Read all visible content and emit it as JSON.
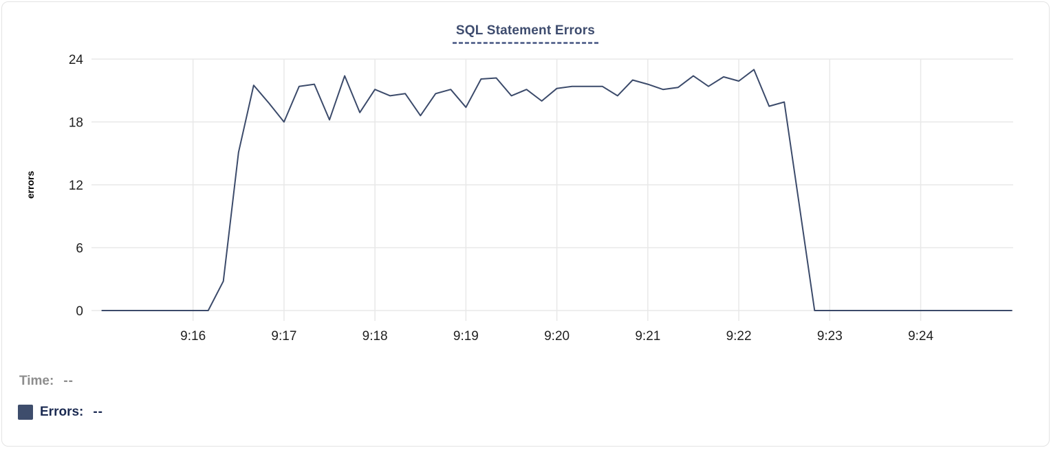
{
  "card": {
    "title": "SQL Statement Errors"
  },
  "chart_data": {
    "type": "line",
    "title": "SQL Statement Errors",
    "xlabel": "",
    "ylabel": "errors",
    "ylim": [
      0,
      24
    ],
    "yticks": [
      0,
      6,
      12,
      18,
      24
    ],
    "xlim": [
      "9:14:53",
      "9:25:01"
    ],
    "xticks": [
      "9:16",
      "9:17",
      "9:18",
      "9:19",
      "9:20",
      "9:21",
      "9:22",
      "9:23",
      "9:24"
    ],
    "grid": true,
    "legend_position": "bottom-left",
    "series": [
      {
        "name": "Errors",
        "x": [
          "9:15:00",
          "9:15:10",
          "9:15:20",
          "9:15:30",
          "9:15:40",
          "9:15:50",
          "9:16:00",
          "9:16:10",
          "9:16:20",
          "9:16:30",
          "9:16:40",
          "9:16:50",
          "9:17:00",
          "9:17:10",
          "9:17:20",
          "9:17:30",
          "9:17:40",
          "9:17:50",
          "9:18:00",
          "9:18:10",
          "9:18:20",
          "9:18:30",
          "9:18:40",
          "9:18:50",
          "9:19:00",
          "9:19:10",
          "9:19:20",
          "9:19:30",
          "9:19:40",
          "9:19:50",
          "9:20:00",
          "9:20:10",
          "9:20:20",
          "9:20:30",
          "9:20:40",
          "9:20:50",
          "9:21:00",
          "9:21:10",
          "9:21:20",
          "9:21:30",
          "9:21:40",
          "9:21:50",
          "9:22:00",
          "9:22:10",
          "9:22:20",
          "9:22:30",
          "9:22:40",
          "9:22:50",
          "9:23:00",
          "9:23:10",
          "9:23:20",
          "9:23:30",
          "9:23:40",
          "9:23:50",
          "9:24:00",
          "9:24:10",
          "9:24:20",
          "9:24:30",
          "9:24:40",
          "9:24:50",
          "9:25:00"
        ],
        "values": [
          0,
          0,
          0,
          0,
          0,
          0,
          0,
          0,
          2.8,
          15.1,
          21.5,
          19.8,
          18,
          21.4,
          21.6,
          18.2,
          22.4,
          18.9,
          21.1,
          20.5,
          20.7,
          18.6,
          20.7,
          21.1,
          19.4,
          22.1,
          22.2,
          20.5,
          21.1,
          20,
          21.2,
          21.4,
          21.4,
          21.4,
          20.5,
          22,
          21.6,
          21.1,
          21.3,
          22.4,
          21.4,
          22.3,
          21.9,
          23,
          19.5,
          19.9,
          10,
          0,
          0,
          0,
          0,
          0,
          0,
          0,
          0,
          0,
          0,
          0,
          0,
          0,
          0
        ]
      }
    ]
  },
  "legend": {
    "rows": [
      {
        "label": "Time:",
        "value": "--",
        "has_swatch": false
      },
      {
        "label": "Errors:",
        "value": "--",
        "has_swatch": true
      }
    ]
  },
  "colors": {
    "line": "#3b4a6a",
    "grid": "#e8e8e8",
    "title": "#3e4c6e",
    "title_underline": "#5f6d93",
    "axis_text": "#1f1f1f",
    "y_axis_label": "#000000",
    "legend_time": "#8d8d8d",
    "legend_errors": "#1c2b52",
    "swatch": "#3e4d6c",
    "card_border": "#e3e3e3",
    "background": "#ffffff"
  }
}
